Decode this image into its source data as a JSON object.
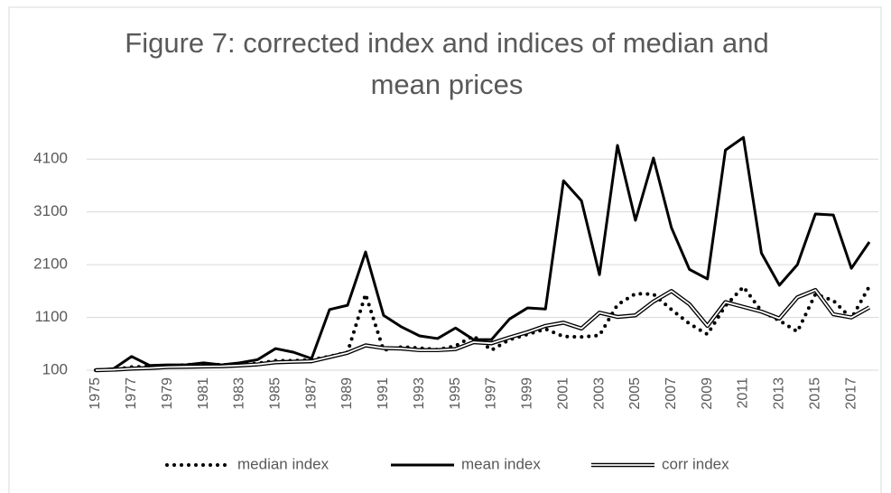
{
  "chart_data": {
    "type": "line",
    "title": "Figure 7: corrected index and indices of median and mean prices",
    "categories": [
      1975,
      null,
      1977,
      null,
      1979,
      null,
      1981,
      null,
      1983,
      null,
      1985,
      null,
      1987,
      null,
      1989,
      null,
      1991,
      null,
      1993,
      null,
      1995,
      null,
      1997,
      null,
      1999,
      null,
      2001,
      null,
      2003,
      null,
      2005,
      null,
      2007,
      null,
      2009,
      null,
      2011,
      null,
      2013,
      null,
      2015,
      null,
      2017,
      null
    ],
    "series": [
      {
        "name": "median index",
        "color": "#000000",
        "style": "dotted",
        "values": [
          100,
          110,
          160,
          170,
          180,
          200,
          220,
          200,
          210,
          230,
          280,
          280,
          300,
          360,
          440,
          1540,
          480,
          540,
          520,
          490,
          560,
          750,
          480,
          680,
          780,
          880,
          740,
          730,
          760,
          1340,
          1550,
          1540,
          1250,
          980,
          780,
          1320,
          1680,
          1220,
          1040,
          830,
          1540,
          1420,
          1080,
          1690
        ]
      },
      {
        "name": "mean index",
        "color": "#000000",
        "style": "solid",
        "values": [
          100,
          130,
          360,
          190,
          200,
          200,
          240,
          200,
          240,
          300,
          510,
          440,
          320,
          1250,
          1330,
          2340,
          1140,
          920,
          750,
          700,
          900,
          680,
          680,
          1070,
          1280,
          1260,
          3690,
          3310,
          1910,
          4360,
          2940,
          4120,
          2800,
          2010,
          1830,
          4270,
          4510,
          2320,
          1710,
          2100,
          3060,
          3040,
          2030,
          2530
        ]
      },
      {
        "name": "corr index",
        "color": "#000000",
        "style": "double",
        "values": [
          100,
          110,
          130,
          140,
          160,
          165,
          170,
          175,
          190,
          210,
          250,
          260,
          270,
          350,
          430,
          570,
          520,
          510,
          480,
          480,
          500,
          630,
          610,
          720,
          820,
          940,
          1000,
          890,
          1190,
          1110,
          1140,
          1400,
          1600,
          1350,
          940,
          1390,
          1300,
          1210,
          1080,
          1480,
          1620,
          1160,
          1100,
          1290
        ]
      }
    ],
    "ylim": [
      100,
      4600
    ],
    "yticks": [
      100,
      1100,
      2100,
      3100,
      4100
    ],
    "grid": true,
    "legend": "bottom"
  }
}
